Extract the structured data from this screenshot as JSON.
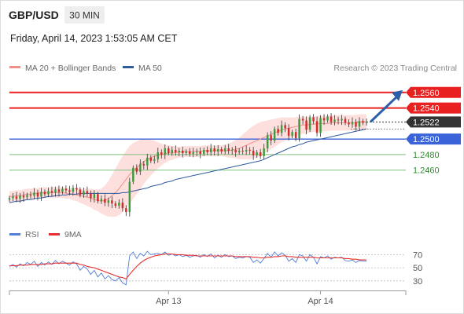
{
  "header": {
    "symbol": "GBP/USD",
    "timeframe": "30 MIN",
    "datetime": "Friday, April 14, 2023 1:53:05 AM CET",
    "credit": "Research © 2023 Trading Central"
  },
  "colors": {
    "bg": "#ffffff",
    "candle_up": "#3c9c3c",
    "candle_down": "#d42a2a",
    "wick": "#333333",
    "bollinger_fill": "#fde0dd",
    "ma20": "#f08f8a",
    "ma50": "#2f5a9e",
    "resistance": "#e8201f",
    "support_primary": "#3a63d9",
    "support_secondary": "#7fbf7f",
    "current_price": "#333333",
    "arrow": "#2d5fa8",
    "rsi": "#4f7fd8",
    "rsi_ma": "#e83030",
    "axis_text": "#555555"
  },
  "chart_data": [
    {
      "type": "candlestick",
      "legend": [
        {
          "name": "MA 20 + Bollinger Bands",
          "color": "#f08f8a"
        },
        {
          "name": "MA 50",
          "color": "#2f5a9e"
        }
      ],
      "ylim": [
        1.2395,
        1.2578
      ],
      "x_ticks": [
        {
          "label": "Apr 13",
          "index": 45
        },
        {
          "label": "Apr 14",
          "index": 88
        }
      ],
      "current_price": {
        "value": 1.2522,
        "label": "1.2522"
      },
      "levels": [
        {
          "value": 1.256,
          "label": "1.2560",
          "kind": "resistance"
        },
        {
          "value": 1.254,
          "label": "1.2540",
          "kind": "resistance"
        },
        {
          "value": 1.25,
          "label": "1.2500",
          "kind": "support_primary"
        },
        {
          "value": 1.248,
          "label": "1.2480",
          "kind": "support_secondary"
        },
        {
          "value": 1.246,
          "label": "1.2460",
          "kind": "support_secondary"
        }
      ],
      "projection": {
        "from": 1.2522,
        "to": 1.2561
      },
      "closes": [
        1.2424,
        1.2426,
        1.2423,
        1.2427,
        1.2425,
        1.2428,
        1.2427,
        1.2431,
        1.2426,
        1.2432,
        1.2429,
        1.2433,
        1.2431,
        1.2435,
        1.2432,
        1.2436,
        1.2434,
        1.2432,
        1.2437,
        1.2435,
        1.2428,
        1.2433,
        1.243,
        1.2424,
        1.2429,
        1.242,
        1.2423,
        1.2418,
        1.2421,
        1.2417,
        1.2414,
        1.2418,
        1.2411,
        1.2406,
        1.2445,
        1.2463,
        1.2458,
        1.2468,
        1.2466,
        1.2476,
        1.2472,
        1.2474,
        1.2483,
        1.248,
        1.2488,
        1.2482,
        1.2486,
        1.2483,
        1.2485,
        1.2482,
        1.2484,
        1.2481,
        1.2483,
        1.2484,
        1.2481,
        1.2486,
        1.2483,
        1.2488,
        1.2484,
        1.2487,
        1.2484,
        1.2488,
        1.2485,
        1.2486,
        1.2483,
        1.2485,
        1.2484,
        1.2486,
        1.2485,
        1.2479,
        1.2483,
        1.2478,
        1.2488,
        1.2505,
        1.2498,
        1.2513,
        1.2508,
        1.2518,
        1.2514,
        1.2504,
        1.2509,
        1.2501,
        1.2526,
        1.2524,
        1.2512,
        1.2528,
        1.2523,
        1.2508,
        1.2527,
        1.2524,
        1.2529,
        1.2522,
        1.2525,
        1.2524,
        1.2526,
        1.2521,
        1.2519,
        1.2522,
        1.2516,
        1.2523,
        1.2521,
        1.2522
      ],
      "ma20": [
        1.2426,
        1.2426,
        1.2427,
        1.2427,
        1.2428,
        1.2429,
        1.2429,
        1.243,
        1.243,
        1.2431,
        1.2431,
        1.2431,
        1.2431,
        1.2431,
        1.2431,
        1.2431,
        1.243,
        1.243,
        1.2429,
        1.2428,
        1.2427,
        1.2426,
        1.2425,
        1.2424,
        1.2422,
        1.2421,
        1.242,
        1.2421,
        1.2423,
        1.2427,
        1.2431,
        1.2436,
        1.2442,
        1.2448,
        1.2454,
        1.2459,
        1.2463,
        1.2467,
        1.2471,
        1.2474,
        1.2476,
        1.2478,
        1.2479,
        1.248,
        1.2481,
        1.2482,
        1.2482,
        1.2483,
        1.2483,
        1.2484,
        1.2484,
        1.2484,
        1.2484,
        1.2484,
        1.2484,
        1.2485,
        1.2485,
        1.2485,
        1.2485,
        1.2485,
        1.2485,
        1.2485,
        1.2485,
        1.2486,
        1.2487,
        1.2488,
        1.249,
        1.2492,
        1.2494,
        1.2496,
        1.2498,
        1.25,
        1.2502,
        1.2504,
        1.2506,
        1.2508,
        1.251,
        1.2512,
        1.2513,
        1.2514,
        1.2515,
        1.2516,
        1.2517,
        1.2518,
        1.2518,
        1.2519,
        1.2519,
        1.252,
        1.252,
        1.252,
        1.252,
        1.2521,
        1.2521,
        1.2521,
        1.2521,
        1.2521,
        1.2521,
        1.2521,
        1.2521,
        1.2522,
        1.2522,
        1.2522
      ],
      "bb_width": [
        0.0007,
        0.0007,
        0.0007,
        0.0007,
        0.0007,
        0.0007,
        0.0007,
        0.0007,
        0.0007,
        0.0007,
        0.0007,
        0.0007,
        0.0007,
        0.0007,
        0.0007,
        0.0007,
        0.0007,
        0.0007,
        0.0008,
        0.0008,
        0.0009,
        0.001,
        0.0011,
        0.0012,
        0.0013,
        0.0014,
        0.0016,
        0.0019,
        0.0023,
        0.0027,
        0.0031,
        0.0034,
        0.0036,
        0.0037,
        0.0037,
        0.0036,
        0.0034,
        0.0032,
        0.0029,
        0.0026,
        0.0023,
        0.002,
        0.0017,
        0.0014,
        0.0012,
        0.001,
        0.0009,
        0.0008,
        0.0007,
        0.0007,
        0.0007,
        0.0007,
        0.0007,
        0.0007,
        0.0007,
        0.0007,
        0.0007,
        0.0007,
        0.0007,
        0.0007,
        0.0007,
        0.0008,
        0.0009,
        0.001,
        0.0012,
        0.0014,
        0.0016,
        0.0018,
        0.002,
        0.0021,
        0.0022,
        0.0022,
        0.0021,
        0.002,
        0.0019,
        0.0018,
        0.0017,
        0.0016,
        0.0015,
        0.0014,
        0.0013,
        0.0012,
        0.0012,
        0.0011,
        0.0011,
        0.001,
        0.001,
        0.001,
        0.001,
        0.001,
        0.001,
        0.001,
        0.001,
        0.001,
        0.001,
        0.001,
        0.001,
        0.001,
        0.001,
        0.001,
        0.001,
        0.001
      ],
      "ma50": [
        1.2418,
        1.2419,
        1.242,
        1.242,
        1.2421,
        1.2422,
        1.2422,
        1.2423,
        1.2424,
        1.2424,
        1.2425,
        1.2426,
        1.2426,
        1.2427,
        1.2427,
        1.2428,
        1.2428,
        1.2429,
        1.2429,
        1.2429,
        1.243,
        1.243,
        1.243,
        1.243,
        1.243,
        1.243,
        1.243,
        1.243,
        1.243,
        1.243,
        1.243,
        1.243,
        1.2431,
        1.2431,
        1.2432,
        1.2433,
        1.2434,
        1.2435,
        1.2436,
        1.2437,
        1.2439,
        1.244,
        1.2441,
        1.2442,
        1.2444,
        1.2445,
        1.2446,
        1.2448,
        1.2449,
        1.245,
        1.2451,
        1.2452,
        1.2453,
        1.2454,
        1.2455,
        1.2456,
        1.2457,
        1.2458,
        1.2459,
        1.246,
        1.2461,
        1.2462,
        1.2463,
        1.2464,
        1.2465,
        1.2466,
        1.2467,
        1.2468,
        1.2469,
        1.247,
        1.2471,
        1.2472,
        1.2474,
        1.2476,
        1.2478,
        1.248,
        1.2482,
        1.2484,
        1.2486,
        1.2488,
        1.249,
        1.2491,
        1.2493,
        1.2494,
        1.2496,
        1.2497,
        1.2498,
        1.2499,
        1.25,
        1.2501,
        1.2502,
        1.2503,
        1.2504,
        1.2505,
        1.2506,
        1.2507,
        1.2508,
        1.2509,
        1.251,
        1.2511,
        1.2512,
        1.2513
      ]
    },
    {
      "type": "line",
      "legend": [
        {
          "name": "RSI",
          "color": "#4f7fd8"
        },
        {
          "name": "9MA",
          "color": "#e83030"
        }
      ],
      "ylim": [
        25,
        80
      ],
      "ticks": [
        {
          "value": 70,
          "label": "70"
        },
        {
          "value": 50,
          "label": "50"
        },
        {
          "value": 30,
          "label": "30"
        }
      ],
      "rsi": [
        52,
        55,
        51,
        56,
        53,
        58,
        55,
        60,
        52,
        58,
        54,
        59,
        55,
        61,
        56,
        60,
        57,
        54,
        59,
        56,
        46,
        52,
        48,
        40,
        46,
        36,
        42,
        33,
        38,
        32,
        30,
        35,
        27,
        24,
        68,
        74,
        64,
        72,
        68,
        75,
        70,
        71,
        72,
        70,
        74,
        69,
        71,
        68,
        70,
        67,
        69,
        66,
        68,
        69,
        66,
        70,
        67,
        71,
        65,
        69,
        66,
        70,
        67,
        68,
        64,
        66,
        65,
        67,
        66,
        58,
        62,
        57,
        64,
        72,
        66,
        74,
        68,
        73,
        69,
        60,
        64,
        58,
        70,
        68,
        60,
        70,
        66,
        56,
        67,
        65,
        68,
        63,
        66,
        65,
        66,
        61,
        60,
        62,
        58,
        61,
        60,
        60
      ],
      "rsi_ma": [
        53,
        53,
        53,
        54,
        54,
        54,
        55,
        55,
        55,
        55,
        56,
        56,
        56,
        57,
        57,
        57,
        57,
        57,
        57,
        57,
        55,
        54,
        52,
        51,
        50,
        48,
        46,
        44,
        42,
        40,
        38,
        36,
        35,
        33,
        40,
        46,
        52,
        57,
        61,
        64,
        66,
        68,
        69,
        70,
        71,
        71,
        71,
        70,
        70,
        70,
        69,
        69,
        69,
        68,
        68,
        68,
        68,
        68,
        68,
        68,
        68,
        68,
        68,
        68,
        67,
        67,
        67,
        67,
        67,
        66,
        66,
        65,
        65,
        66,
        66,
        67,
        67,
        68,
        68,
        67,
        67,
        66,
        66,
        66,
        66,
        66,
        66,
        65,
        65,
        65,
        65,
        65,
        65,
        65,
        65,
        64,
        64,
        63,
        63,
        62,
        62,
        62
      ]
    }
  ]
}
